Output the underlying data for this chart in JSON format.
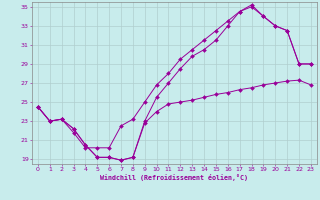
{
  "xlabel": "Windchill (Refroidissement éolien,°C)",
  "xlim": [
    -0.5,
    23.5
  ],
  "ylim": [
    18.5,
    35.5
  ],
  "yticks": [
    19,
    21,
    23,
    25,
    27,
    29,
    31,
    33,
    35
  ],
  "xticks": [
    0,
    1,
    2,
    3,
    4,
    5,
    6,
    7,
    8,
    9,
    10,
    11,
    12,
    13,
    14,
    15,
    16,
    17,
    18,
    19,
    20,
    21,
    22,
    23
  ],
  "background_color": "#c8ecec",
  "line_color": "#990099",
  "grid_color": "#b0cece",
  "series1_x": [
    0,
    1,
    2,
    3,
    4,
    5,
    6,
    7,
    8,
    9,
    10,
    11,
    12,
    13,
    14,
    15,
    16,
    17,
    18,
    19,
    20,
    21,
    22,
    23
  ],
  "series1_y": [
    24.5,
    23.0,
    23.2,
    22.2,
    20.5,
    19.2,
    19.2,
    18.9,
    19.2,
    22.8,
    24.0,
    24.8,
    25.0,
    25.2,
    25.5,
    25.8,
    26.0,
    26.3,
    26.5,
    26.8,
    27.0,
    27.2,
    27.3,
    26.8
  ],
  "series2_x": [
    0,
    1,
    2,
    3,
    4,
    5,
    6,
    7,
    8,
    9,
    10,
    11,
    12,
    13,
    14,
    15,
    16,
    17,
    18,
    19,
    20,
    21,
    22,
    23
  ],
  "series2_y": [
    24.5,
    23.0,
    23.2,
    21.8,
    20.2,
    20.2,
    20.2,
    22.5,
    23.2,
    25.0,
    26.8,
    28.0,
    29.5,
    30.5,
    31.5,
    32.5,
    33.5,
    34.5,
    35.0,
    34.0,
    33.0,
    32.5,
    29.0,
    29.0
  ],
  "series3_x": [
    0,
    1,
    2,
    3,
    4,
    5,
    6,
    7,
    8,
    9,
    10,
    11,
    12,
    13,
    14,
    15,
    16,
    17,
    18,
    19,
    20,
    21,
    22,
    23
  ],
  "series3_y": [
    24.5,
    23.0,
    23.2,
    22.2,
    20.5,
    19.2,
    19.2,
    18.9,
    19.2,
    23.0,
    25.5,
    27.0,
    28.5,
    29.8,
    30.5,
    31.5,
    33.0,
    34.5,
    35.2,
    34.0,
    33.0,
    32.5,
    29.0,
    29.0
  ]
}
